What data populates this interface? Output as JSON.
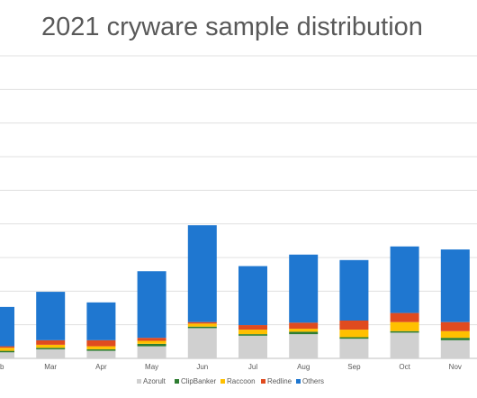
{
  "title": "2021 cryware sample distribution",
  "chart_data": {
    "type": "bar",
    "stacked": true,
    "title": "2021 cryware sample distribution",
    "categories": [
      "Feb",
      "Mar",
      "Apr",
      "May",
      "Jun",
      "Jul",
      "Aug",
      "Sep",
      "Oct",
      "Nov"
    ],
    "category_labels": [
      "eb",
      "Mar",
      "Apr",
      "May",
      "Jun",
      "Jul",
      "Aug",
      "Sep",
      "Oct",
      "Nov"
    ],
    "ylim": [
      0,
      10
    ],
    "grid": true,
    "legend_position": "bottom",
    "series": [
      {
        "name": "Azorult",
        "color": "#d0d0d0",
        "values": [
          0.2,
          0.3,
          0.25,
          0.4,
          1.0,
          0.75,
          0.8,
          0.65,
          0.85,
          0.6
        ]
      },
      {
        "name": "ClipBanker",
        "color": "#2e7d32",
        "values": [
          0.05,
          0.05,
          0.05,
          0.08,
          0.05,
          0.05,
          0.08,
          0.05,
          0.05,
          0.08
        ]
      },
      {
        "name": "Raccoon",
        "color": "#ffc000",
        "values": [
          0.1,
          0.1,
          0.1,
          0.1,
          0.1,
          0.15,
          0.1,
          0.25,
          0.3,
          0.22
        ]
      },
      {
        "name": "Redline",
        "color": "#e04b1f",
        "values": [
          0.05,
          0.15,
          0.2,
          0.1,
          0.05,
          0.15,
          0.2,
          0.3,
          0.3,
          0.3
        ]
      },
      {
        "name": "Others",
        "color": "#1f77d0",
        "values": [
          1.3,
          1.6,
          1.25,
          2.2,
          3.2,
          1.95,
          2.25,
          2.0,
          2.2,
          2.4
        ]
      }
    ]
  }
}
